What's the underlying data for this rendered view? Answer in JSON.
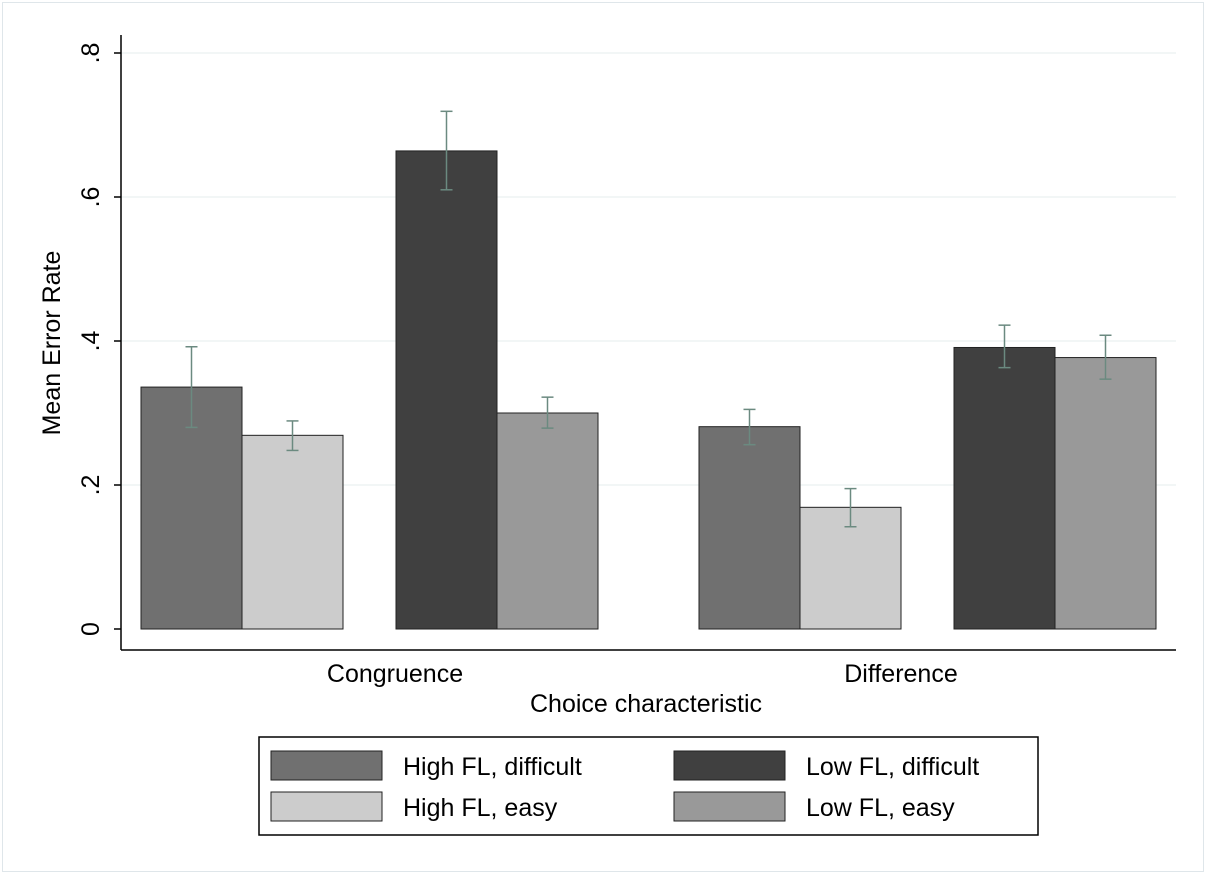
{
  "chart_data": {
    "type": "bar",
    "xlabel": "Choice characteristic",
    "ylabel": "Mean Error Rate",
    "ylim": [
      0,
      0.8
    ],
    "yticks": [
      {
        "value": 0,
        "label": "0"
      },
      {
        "value": 0.2,
        "label": ".2"
      },
      {
        "value": 0.4,
        "label": ".4"
      },
      {
        "value": 0.6,
        "label": ".6"
      },
      {
        "value": 0.8,
        "label": ".8"
      }
    ],
    "grid": true,
    "legend_position": "bottom",
    "categories": [
      "Congruence",
      "Difference"
    ],
    "series": [
      {
        "name": "High FL, difficult",
        "color": "#707070",
        "values": [
          0.336,
          0.281
        ],
        "err_low": [
          0.28,
          0.256
        ],
        "err_high": [
          0.392,
          0.305
        ]
      },
      {
        "name": "High FL, easy",
        "color": "#cccccc",
        "values": [
          0.269,
          0.169
        ],
        "err_low": [
          0.248,
          0.142
        ],
        "err_high": [
          0.289,
          0.195
        ]
      },
      {
        "name": "Low FL, difficult",
        "color": "#404040",
        "values": [
          0.664,
          0.391
        ],
        "err_low": [
          0.61,
          0.363
        ],
        "err_high": [
          0.719,
          0.422
        ]
      },
      {
        "name": "Low FL, easy",
        "color": "#999999",
        "values": [
          0.3,
          0.377
        ],
        "err_low": [
          0.279,
          0.347
        ],
        "err_high": [
          0.322,
          0.408
        ]
      }
    ]
  }
}
